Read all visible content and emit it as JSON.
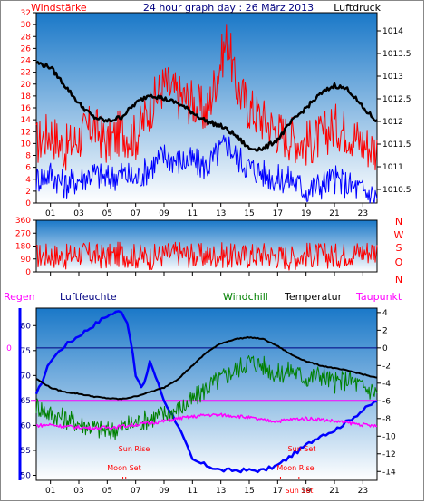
{
  "colors": {
    "red": "#ff0000",
    "blue": "#0000ff",
    "black": "#000000",
    "green": "#008000",
    "magenta": "#ff00ff",
    "navy": "#000080",
    "plot_top": "#1a78c8",
    "plot_bottom": "#ffffff"
  },
  "header": {
    "left": "Windstärke",
    "title": "24 hour graph day : 26 März 2013",
    "right": "Luftdruck"
  },
  "compass": [
    "N",
    "W",
    "S",
    "O",
    "N"
  ],
  "legend": {
    "regen": "Regen",
    "luftfeuchte": "Luftfeuchte",
    "windchill": "Windchill",
    "temperatur": "Temperatur",
    "taupunkt": "Taupunkt"
  },
  "annotations": {
    "sun_rise": "Sun Rise",
    "moon_set": "Moon Set",
    "sun_set": "Sun Set",
    "moon_rise": "Moon Rise",
    "sun_set_bottom": "Sun Set"
  },
  "chart_data": [
    {
      "type": "line",
      "hours": [
        "01",
        "03",
        "05",
        "07",
        "09",
        "11",
        "13",
        "15",
        "17",
        "19",
        "21",
        "23"
      ],
      "y_left": {
        "label": "Windstärke",
        "ticks": [
          0,
          2,
          4,
          6,
          8,
          10,
          12,
          14,
          16,
          18,
          20,
          22,
          24,
          26,
          28,
          30,
          32
        ],
        "range": [
          0,
          32
        ]
      },
      "y_right": {
        "label": "Luftdruck",
        "ticks": [
          1010.5,
          1011,
          1011.5,
          1012,
          1012.5,
          1013,
          1013.5,
          1014
        ],
        "range": [
          1010.2,
          1014.4
        ]
      },
      "series": [
        {
          "name": "Windstärke",
          "color": "#ff0000",
          "x": [
            0,
            1,
            2,
            3,
            4,
            5,
            6,
            7,
            8,
            9,
            10,
            11,
            12,
            13,
            13.5,
            14,
            15,
            16,
            17,
            18,
            19,
            20,
            21,
            22,
            23,
            24
          ],
          "y": [
            10,
            12,
            9,
            11,
            13,
            10,
            12,
            11,
            16,
            20,
            18,
            17,
            15,
            24,
            28,
            20,
            16,
            14,
            12,
            11,
            10,
            11,
            13,
            12,
            10,
            9
          ]
        },
        {
          "name": "Gust",
          "color": "#0000ff",
          "x": [
            0,
            1,
            2,
            3,
            4,
            5,
            6,
            7,
            8,
            9,
            10,
            11,
            12,
            13,
            13.5,
            14,
            15,
            16,
            17,
            18,
            19,
            20,
            21,
            22,
            23,
            24
          ],
          "y": [
            4,
            5,
            3,
            4,
            5,
            4,
            5,
            4,
            6,
            8,
            7,
            7,
            6,
            9,
            10,
            8,
            6,
            5,
            4,
            4,
            2,
            3,
            4,
            3,
            2,
            1
          ]
        },
        {
          "name": "Luftdruck",
          "color": "#000000",
          "x": [
            0,
            1,
            2,
            3,
            4,
            5,
            6,
            7,
            8,
            9,
            10,
            11,
            12,
            13,
            14,
            15,
            16,
            17,
            18,
            19,
            20,
            21,
            22,
            23,
            24
          ],
          "y": [
            1013.3,
            1013.2,
            1012.8,
            1012.4,
            1012.1,
            1012.0,
            1012.1,
            1012.4,
            1012.6,
            1012.5,
            1012.4,
            1012.2,
            1012.0,
            1011.9,
            1011.7,
            1011.4,
            1011.4,
            1011.6,
            1012.0,
            1012.3,
            1012.6,
            1012.8,
            1012.7,
            1012.3,
            1012.0
          ]
        }
      ]
    },
    {
      "type": "line",
      "hours": [
        "01",
        "03",
        "05",
        "07",
        "09",
        "11",
        "13",
        "15",
        "17",
        "19",
        "21",
        "23"
      ],
      "y_left": {
        "ticks": [
          0,
          90,
          180,
          270,
          360
        ],
        "range": [
          0,
          360
        ]
      },
      "series": [
        {
          "name": "Windrichtung",
          "color": "#ff0000",
          "x": [
            0,
            1,
            2,
            3,
            4,
            5,
            6,
            7,
            8,
            9,
            10,
            11,
            12,
            13,
            14,
            15,
            16,
            17,
            18,
            19,
            20,
            21,
            22,
            23,
            24
          ],
          "y": [
            110,
            120,
            100,
            130,
            115,
            105,
            125,
            110,
            100,
            120,
            130,
            115,
            110,
            120,
            105,
            115,
            125,
            110,
            100,
            120,
            115,
            110,
            130,
            140,
            150
          ]
        }
      ]
    },
    {
      "type": "line",
      "hours": [
        "01",
        "03",
        "05",
        "07",
        "09",
        "11",
        "13",
        "15",
        "17",
        "19",
        "21",
        "23"
      ],
      "y_left": {
        "ticks": [
          50,
          55,
          60,
          65,
          70,
          75,
          80
        ],
        "range": [
          49,
          83.5
        ]
      },
      "y_right": {
        "ticks": [
          4,
          2,
          0,
          -2,
          -4,
          -6,
          -8,
          -10,
          -12,
          -14
        ],
        "range": [
          -15,
          4.5
        ]
      },
      "series": [
        {
          "name": "Luftfeuchte",
          "color": "#0000ff",
          "axis": "left",
          "x": [
            0,
            1,
            2,
            3,
            4,
            5,
            6,
            6.5,
            7,
            7.5,
            8,
            9,
            10,
            11,
            12,
            13,
            14,
            15,
            16,
            17,
            18,
            19,
            20,
            21,
            22,
            23,
            24
          ],
          "y": [
            66,
            73,
            76,
            78,
            80,
            82,
            83,
            80,
            70,
            67,
            73,
            65,
            60,
            53,
            52,
            51,
            51,
            51,
            51,
            52,
            54,
            56,
            58,
            59,
            61,
            63,
            65
          ]
        },
        {
          "name": "Windchill",
          "color": "#008000",
          "axis": "right",
          "x": [
            0,
            1,
            2,
            3,
            4,
            5,
            6,
            7,
            8,
            9,
            10,
            11,
            12,
            13,
            14,
            15,
            16,
            17,
            18,
            19,
            20,
            21,
            22,
            23,
            24
          ],
          "y": [
            -6.5,
            -7.5,
            -8.0,
            -8.5,
            -9.0,
            -9.5,
            -9.0,
            -8.5,
            -8.0,
            -7.5,
            -7.0,
            -6.0,
            -4.5,
            -3.5,
            -2.5,
            -1.5,
            -2.0,
            -3.0,
            -2.5,
            -3.5,
            -3.0,
            -4.0,
            -3.5,
            -4.5,
            -5.0
          ]
        },
        {
          "name": "Temperatur",
          "color": "#000000",
          "axis": "right",
          "x": [
            0,
            1,
            2,
            3,
            4,
            5,
            6,
            7,
            8,
            9,
            10,
            11,
            12,
            13,
            14,
            15,
            16,
            17,
            18,
            19,
            20,
            21,
            22,
            23,
            24
          ],
          "y": [
            -3.5,
            -4.5,
            -5.0,
            -5.2,
            -5.5,
            -5.7,
            -5.8,
            -5.5,
            -5.0,
            -4.5,
            -3.5,
            -2.0,
            -0.5,
            0.5,
            1.0,
            1.2,
            1.0,
            0.2,
            -0.8,
            -1.5,
            -2.0,
            -2.3,
            -2.6,
            -3.0,
            -3.4
          ]
        },
        {
          "name": "Taupunkt",
          "color": "#ff00ff",
          "axis": "right",
          "x": [
            0,
            1,
            2,
            3,
            4,
            5,
            6,
            7,
            8,
            9,
            10,
            11,
            12,
            13,
            14,
            15,
            16,
            17,
            18,
            19,
            20,
            21,
            22,
            23,
            24
          ],
          "y": [
            -8.8,
            -8.7,
            -8.9,
            -9.0,
            -9.1,
            -9.0,
            -8.9,
            -8.7,
            -8.5,
            -8.3,
            -8.0,
            -7.8,
            -7.6,
            -7.6,
            -7.7,
            -7.9,
            -8.2,
            -8.3,
            -8.1,
            -8.0,
            -8.1,
            -8.3,
            -8.5,
            -8.7,
            -8.9
          ]
        }
      ],
      "reference_lines": [
        {
          "axis": "right",
          "value": 0,
          "color": "#000080"
        },
        {
          "axis": "right",
          "value": -6,
          "color": "#ff00ff"
        }
      ],
      "events": [
        {
          "label": "Sun Rise",
          "hour": 6.1
        },
        {
          "label": "Moon Set",
          "hour": 6.3
        },
        {
          "label": "Sun Set",
          "hour": 18.5
        },
        {
          "label": "Moon Rise",
          "hour": 17.2
        }
      ]
    }
  ]
}
